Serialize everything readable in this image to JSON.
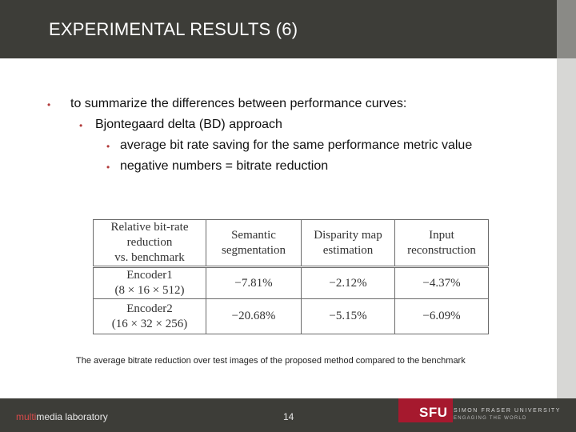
{
  "header": {
    "title": "EXPERIMENTAL RESULTS (6)"
  },
  "bullets": [
    {
      "marker": "•",
      "text": "to summarize the differences between performance curves:"
    },
    {
      "marker": "•",
      "text": "Bjontegaard  delta  (BD)  approach"
    },
    {
      "marker": "•",
      "text": "average bit rate saving for the same performance metric value"
    },
    {
      "marker": "•",
      "text": "negative numbers = bitrate reduction"
    }
  ],
  "table": {
    "headers": [
      [
        "Relative bit-rate",
        "reduction",
        "vs. benchmark"
      ],
      [
        "Semantic",
        "segmentation"
      ],
      [
        "Disparity map",
        "estimation"
      ],
      [
        "Input",
        "reconstruction"
      ]
    ],
    "rows": [
      {
        "label": "Encoder1",
        "sublabel": "(8 × 16 × 512)",
        "values": [
          "−7.81%",
          "−2.12%",
          "−4.37%"
        ]
      },
      {
        "label": "Encoder2",
        "sublabel": "(16 × 32 × 256)",
        "values": [
          "−20.68%",
          "−5.15%",
          "−6.09%"
        ]
      }
    ]
  },
  "caption": "The average bitrate reduction over test images of the proposed method compared to the benchmark",
  "footer": {
    "lab_prefix": "multi",
    "lab_rest": "media laboratory",
    "page_number": "14",
    "logo_abbr": "SFU",
    "logo_name": "SIMON FRASER UNIVERSITY",
    "logo_tagline": "ENGAGING THE WORLD"
  },
  "colors": {
    "header_bg": "#3d3d38",
    "bullet_marker": "#b23b3b",
    "sfu_red": "#a6192e"
  }
}
